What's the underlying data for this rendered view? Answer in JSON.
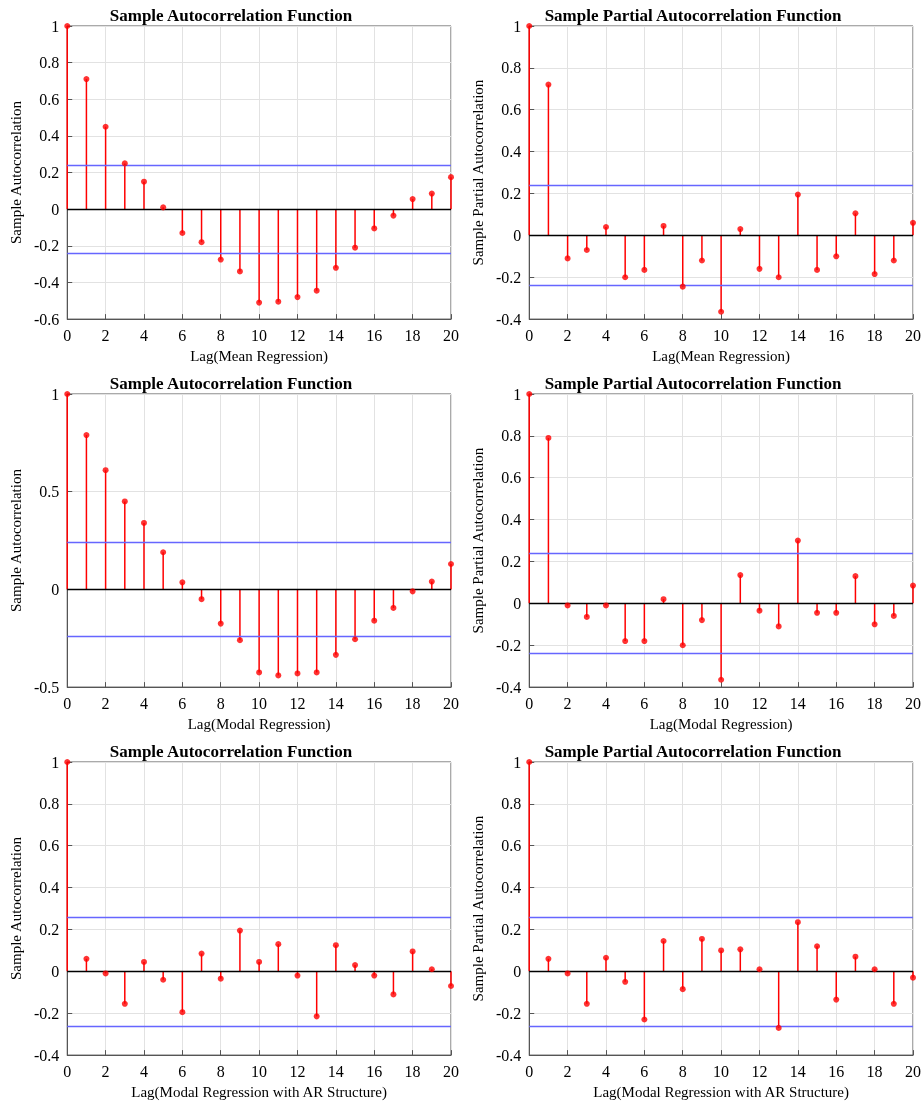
{
  "chart_data": [
    {
      "type": "lollipop",
      "title": "Sample Autocorrelation Function",
      "xlabel": "Lag(Mean Regression)",
      "ylabel": "Sample Autocorrelation",
      "x": [
        0,
        1,
        2,
        3,
        4,
        5,
        6,
        7,
        8,
        9,
        10,
        11,
        12,
        13,
        14,
        15,
        16,
        17,
        18,
        19,
        20
      ],
      "series": [
        {
          "color": "#ff0000",
          "values": [
            1,
            0.71,
            0.45,
            0.25,
            0.15,
            0.01,
            -0.13,
            -0.18,
            -0.275,
            -0.34,
            -0.51,
            -0.505,
            -0.48,
            -0.445,
            -0.32,
            -0.21,
            -0.105,
            -0.035,
            0.055,
            0.085,
            0.175
          ]
        }
      ],
      "xlim": [
        0,
        20
      ],
      "xticks": [
        0,
        2,
        4,
        6,
        8,
        10,
        12,
        14,
        16,
        18,
        20
      ],
      "ylim": [
        -0.6,
        1
      ],
      "yticks": [
        -0.6,
        -0.4,
        -0.2,
        0,
        0.2,
        0.4,
        0.6,
        0.8,
        1
      ],
      "grid": true,
      "marker": "circle",
      "ref_lines": [
        {
          "axis": "y",
          "value": 0,
          "color": "#000000"
        },
        {
          "axis": "y",
          "value": 0.24,
          "color": "#6666ff"
        },
        {
          "axis": "y",
          "value": -0.24,
          "color": "#6666ff"
        }
      ]
    },
    {
      "type": "lollipop",
      "title": "Sample Partial Autocorrelation Function",
      "xlabel": "Lag(Mean Regression)",
      "ylabel": "Sample Partial Autocorrelation",
      "x": [
        0,
        1,
        2,
        3,
        4,
        5,
        6,
        7,
        8,
        9,
        10,
        11,
        12,
        13,
        14,
        15,
        16,
        17,
        18,
        19,
        20
      ],
      "series": [
        {
          "color": "#ff0000",
          "values": [
            1,
            0.72,
            -0.11,
            -0.07,
            0.04,
            -0.2,
            -0.165,
            0.045,
            -0.245,
            -0.12,
            -0.365,
            0.03,
            -0.16,
            -0.2,
            0.195,
            -0.165,
            -0.1,
            0.105,
            -0.185,
            -0.12,
            0.06
          ]
        }
      ],
      "xlim": [
        0,
        20
      ],
      "xticks": [
        0,
        2,
        4,
        6,
        8,
        10,
        12,
        14,
        16,
        18,
        20
      ],
      "ylim": [
        -0.4,
        1
      ],
      "yticks": [
        -0.4,
        -0.2,
        0,
        0.2,
        0.4,
        0.6,
        0.8,
        1
      ],
      "grid": true,
      "marker": "circle",
      "ref_lines": [
        {
          "axis": "y",
          "value": 0,
          "color": "#000000"
        },
        {
          "axis": "y",
          "value": 0.24,
          "color": "#6666ff"
        },
        {
          "axis": "y",
          "value": -0.24,
          "color": "#6666ff"
        }
      ]
    },
    {
      "type": "lollipop",
      "title": "Sample Autocorrelation Function",
      "xlabel": "Lag(Modal Regression)",
      "ylabel": "Sample Autocorrelation",
      "x": [
        0,
        1,
        2,
        3,
        4,
        5,
        6,
        7,
        8,
        9,
        10,
        11,
        12,
        13,
        14,
        15,
        16,
        17,
        18,
        19,
        20
      ],
      "series": [
        {
          "color": "#ff0000",
          "values": [
            1,
            0.79,
            0.61,
            0.45,
            0.34,
            0.19,
            0.036,
            -0.05,
            -0.175,
            -0.26,
            -0.425,
            -0.44,
            -0.43,
            -0.425,
            -0.335,
            -0.255,
            -0.16,
            -0.095,
            -0.01,
            0.04,
            0.13
          ]
        }
      ],
      "xlim": [
        0,
        20
      ],
      "xticks": [
        0,
        2,
        4,
        6,
        8,
        10,
        12,
        14,
        16,
        18,
        20
      ],
      "ylim": [
        -0.5,
        1
      ],
      "yticks": [
        -0.5,
        0,
        0.5,
        1
      ],
      "grid": true,
      "marker": "circle",
      "ref_lines": [
        {
          "axis": "y",
          "value": 0,
          "color": "#000000"
        },
        {
          "axis": "y",
          "value": 0.24,
          "color": "#6666ff"
        },
        {
          "axis": "y",
          "value": -0.24,
          "color": "#6666ff"
        }
      ]
    },
    {
      "type": "lollipop",
      "title": "Sample Partial Autocorrelation Function",
      "xlabel": "Lag(Modal Regression)",
      "ylabel": "Sample Partial Autocorrelation",
      "x": [
        0,
        1,
        2,
        3,
        4,
        5,
        6,
        7,
        8,
        9,
        10,
        11,
        12,
        13,
        14,
        15,
        16,
        17,
        18,
        19,
        20
      ],
      "series": [
        {
          "color": "#ff0000",
          "values": [
            1,
            0.79,
            -0.01,
            -0.065,
            -0.01,
            -0.18,
            -0.18,
            0.02,
            -0.2,
            -0.08,
            -0.365,
            0.135,
            -0.035,
            -0.11,
            0.3,
            -0.045,
            -0.045,
            0.13,
            -0.1,
            -0.06,
            0.085
          ]
        }
      ],
      "xlim": [
        0,
        20
      ],
      "xticks": [
        0,
        2,
        4,
        6,
        8,
        10,
        12,
        14,
        16,
        18,
        20
      ],
      "ylim": [
        -0.4,
        1
      ],
      "yticks": [
        -0.4,
        -0.2,
        0,
        0.2,
        0.4,
        0.6,
        0.8,
        1
      ],
      "grid": true,
      "marker": "circle",
      "ref_lines": [
        {
          "axis": "y",
          "value": 0,
          "color": "#000000"
        },
        {
          "axis": "y",
          "value": 0.24,
          "color": "#6666ff"
        },
        {
          "axis": "y",
          "value": -0.24,
          "color": "#6666ff"
        }
      ]
    },
    {
      "type": "lollipop",
      "title": "Sample Autocorrelation Function",
      "xlabel": "Lag(Modal Regression with AR Structure)",
      "ylabel": "Sample Autocorrelation",
      "x": [
        0,
        1,
        2,
        3,
        4,
        5,
        6,
        7,
        8,
        9,
        10,
        11,
        12,
        13,
        14,
        15,
        16,
        17,
        18,
        19,
        20
      ],
      "series": [
        {
          "color": "#ff0000",
          "values": [
            1,
            0.06,
            -0.01,
            -0.155,
            0.045,
            -0.04,
            -0.195,
            0.085,
            -0.035,
            0.195,
            0.045,
            0.13,
            -0.02,
            -0.215,
            0.125,
            0.03,
            -0.02,
            -0.11,
            0.095,
            0.01,
            -0.07
          ]
        }
      ],
      "xlim": [
        0,
        20
      ],
      "xticks": [
        0,
        2,
        4,
        6,
        8,
        10,
        12,
        14,
        16,
        18,
        20
      ],
      "ylim": [
        -0.4,
        1
      ],
      "yticks": [
        -0.4,
        -0.2,
        0,
        0.2,
        0.4,
        0.6,
        0.8,
        1
      ],
      "grid": true,
      "marker": "circle",
      "ref_lines": [
        {
          "axis": "y",
          "value": 0,
          "color": "#000000"
        },
        {
          "axis": "y",
          "value": 0.26,
          "color": "#6666ff"
        },
        {
          "axis": "y",
          "value": -0.26,
          "color": "#6666ff"
        }
      ]
    },
    {
      "type": "lollipop",
      "title": "Sample Partial Autocorrelation Function",
      "xlabel": "Lag(Modal Regression with AR Structure)",
      "ylabel": "Sample Partial Autocorrelation",
      "x": [
        0,
        1,
        2,
        3,
        4,
        5,
        6,
        7,
        8,
        9,
        10,
        11,
        12,
        13,
        14,
        15,
        16,
        17,
        18,
        19,
        20
      ],
      "series": [
        {
          "color": "#ff0000",
          "values": [
            1,
            0.06,
            -0.01,
            -0.155,
            0.065,
            -0.05,
            -0.23,
            0.145,
            -0.085,
            0.155,
            0.1,
            0.105,
            0.01,
            -0.27,
            0.235,
            0.12,
            -0.135,
            0.07,
            0.01,
            -0.155,
            -0.03
          ]
        }
      ],
      "xlim": [
        0,
        20
      ],
      "xticks": [
        0,
        2,
        4,
        6,
        8,
        10,
        12,
        14,
        16,
        18,
        20
      ],
      "ylim": [
        -0.4,
        1
      ],
      "yticks": [
        -0.4,
        -0.2,
        0,
        0.2,
        0.4,
        0.6,
        0.8,
        1
      ],
      "grid": true,
      "marker": "circle",
      "ref_lines": [
        {
          "axis": "y",
          "value": 0,
          "color": "#000000"
        },
        {
          "axis": "y",
          "value": 0.26,
          "color": "#6666ff"
        },
        {
          "axis": "y",
          "value": -0.26,
          "color": "#6666ff"
        }
      ]
    }
  ]
}
